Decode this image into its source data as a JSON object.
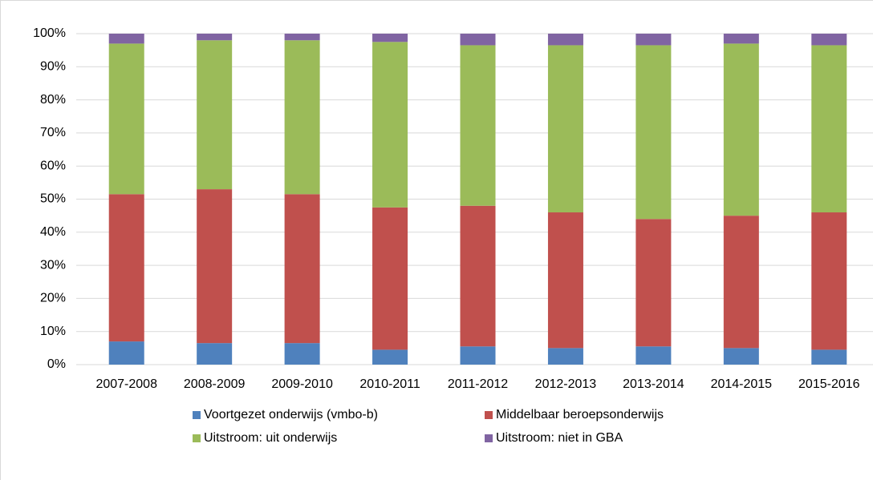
{
  "chart_data": {
    "type": "stacked_bar",
    "categories": [
      "2007-2008",
      "2008-2009",
      "2009-2010",
      "2010-2011",
      "2011-2012",
      "2012-2013",
      "2013-2014",
      "2014-2015",
      "2015-2016"
    ],
    "series": [
      {
        "name": "Voortgezet onderwijs (vmbo-b)",
        "color": "#4f81bd",
        "values": [
          7,
          6.5,
          6.5,
          4.5,
          5.5,
          5,
          5.5,
          5,
          4.5
        ]
      },
      {
        "name": "Middelbaar beroepsonderwijs",
        "color": "#c0504d",
        "values": [
          44.5,
          46.5,
          45,
          43,
          42.5,
          41,
          38.5,
          40,
          41.5
        ]
      },
      {
        "name": "Uitstroom: uit onderwijs",
        "color": "#9bbb59",
        "values": [
          45.5,
          45,
          46.5,
          50,
          48.5,
          50.5,
          52.5,
          52,
          50.5
        ]
      },
      {
        "name": "Uitstroom: niet in GBA",
        "color": "#8064a2",
        "values": [
          3,
          2,
          2,
          2.5,
          3.5,
          3.5,
          3.5,
          3,
          3.5
        ]
      }
    ],
    "ylim": [
      0,
      100
    ],
    "yticks": [
      {
        "value": 0,
        "label": "0%"
      },
      {
        "value": 10,
        "label": "10%"
      },
      {
        "value": 20,
        "label": "20%"
      },
      {
        "value": 30,
        "label": "30%"
      },
      {
        "value": 40,
        "label": "40%"
      },
      {
        "value": 50,
        "label": "50%"
      },
      {
        "value": 60,
        "label": "60%"
      },
      {
        "value": 70,
        "label": "70%"
      },
      {
        "value": 80,
        "label": "80%"
      },
      {
        "value": 90,
        "label": "90%"
      },
      {
        "value": 100,
        "label": "100%"
      }
    ],
    "grid": true
  }
}
